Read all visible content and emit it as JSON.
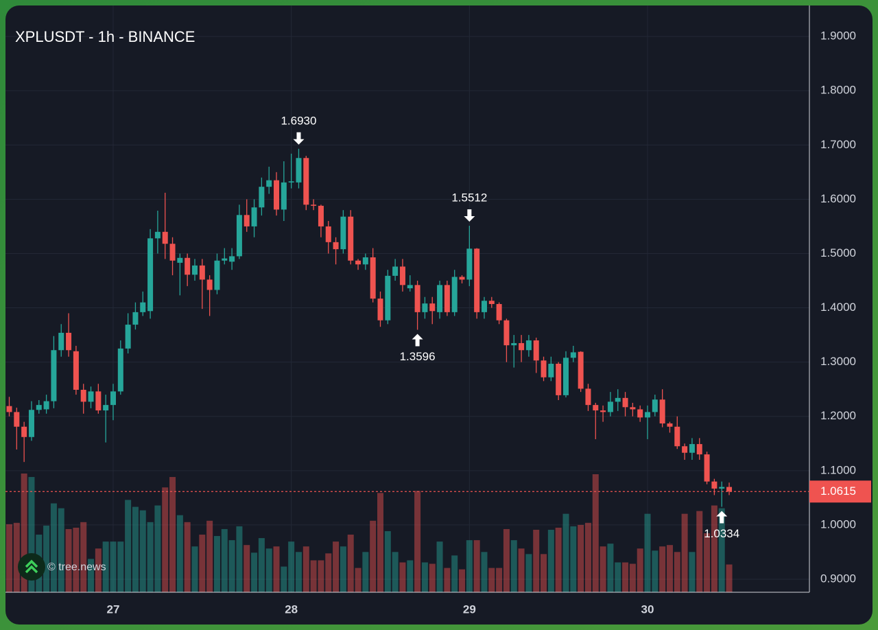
{
  "chart_data": {
    "type": "candlestick",
    "title": "XPLUSDT - 1h - BINANCE",
    "watermark": "© tree.news",
    "categories": [
      null,
      null,
      null,
      null,
      null,
      null,
      null,
      null,
      null,
      null,
      null,
      null,
      null,
      null,
      "27",
      null,
      null,
      null,
      null,
      null,
      null,
      null,
      null,
      null,
      null,
      null,
      null,
      null,
      null,
      null,
      null,
      null,
      null,
      null,
      null,
      null,
      null,
      null,
      "28",
      null,
      null,
      null,
      null,
      null,
      null,
      null,
      null,
      null,
      null,
      null,
      null,
      null,
      null,
      null,
      null,
      null,
      null,
      null,
      null,
      null,
      null,
      null,
      "29",
      null,
      null,
      null,
      null,
      null,
      null,
      null,
      null,
      null,
      null,
      null,
      null,
      null,
      null,
      null,
      null,
      null,
      null,
      null,
      null,
      null,
      null,
      null,
      "30",
      null,
      null,
      null,
      null,
      null,
      null,
      null,
      null,
      null,
      null,
      null
    ],
    "open": [
      1.219,
      1.208,
      1.181,
      1.162,
      1.212,
      1.213,
      1.228,
      1.322,
      1.354,
      1.32,
      1.249,
      1.227,
      1.246,
      1.211,
      1.221,
      1.246,
      1.325,
      1.369,
      1.392,
      1.394,
      1.528,
      1.54,
      1.518,
      1.483,
      1.492,
      1.461,
      1.478,
      1.452,
      1.433,
      1.487,
      1.485,
      1.495,
      1.571,
      1.55,
      1.585,
      1.623,
      1.635,
      1.581,
      1.631,
      1.631,
      1.676,
      1.59,
      1.588,
      1.55,
      1.521,
      1.508,
      1.568,
      1.487,
      1.48,
      1.493,
      1.417,
      1.377,
      1.459,
      1.476,
      1.436,
      1.442,
      1.392,
      1.408,
      1.392,
      1.442,
      1.392,
      1.457,
      1.452,
      1.509,
      1.392,
      1.413,
      1.407,
      1.377,
      1.331,
      1.335,
      1.322,
      1.34,
      1.303,
      1.272,
      1.297,
      1.239,
      1.308,
      1.319,
      1.251,
      1.221,
      1.211,
      1.208,
      1.227,
      1.234,
      1.217,
      1.213,
      1.198,
      1.208,
      1.231,
      1.187,
      1.181,
      1.145,
      1.133,
      1.149,
      1.13,
      1.08,
      1.067,
      1.07
    ],
    "high": [
      1.236,
      1.216,
      1.19,
      1.228,
      1.23,
      1.24,
      1.348,
      1.37,
      1.39,
      1.33,
      1.26,
      1.255,
      1.26,
      1.24,
      1.26,
      1.34,
      1.39,
      1.41,
      1.43,
      1.545,
      1.579,
      1.612,
      1.53,
      1.5,
      1.5,
      1.49,
      1.49,
      1.46,
      1.5,
      1.51,
      1.51,
      1.59,
      1.6,
      1.6,
      1.64,
      1.66,
      1.65,
      1.67,
      1.684,
      1.693,
      1.68,
      1.6,
      1.59,
      1.56,
      1.53,
      1.58,
      1.58,
      1.49,
      1.5,
      1.51,
      1.43,
      1.47,
      1.49,
      1.49,
      1.46,
      1.45,
      1.42,
      1.42,
      1.45,
      1.45,
      1.47,
      1.46,
      1.5512,
      1.51,
      1.42,
      1.42,
      1.41,
      1.38,
      1.35,
      1.35,
      1.35,
      1.345,
      1.31,
      1.31,
      1.3,
      1.32,
      1.33,
      1.32,
      1.26,
      1.225,
      1.22,
      1.245,
      1.25,
      1.245,
      1.225,
      1.22,
      1.22,
      1.24,
      1.25,
      1.19,
      1.2,
      1.15,
      1.16,
      1.16,
      1.135,
      1.085,
      1.08,
      1.078
    ],
    "low": [
      1.2,
      1.139,
      1.116,
      1.155,
      1.205,
      1.205,
      1.215,
      1.31,
      1.31,
      1.24,
      1.205,
      1.215,
      1.205,
      1.152,
      1.193,
      1.24,
      1.316,
      1.36,
      1.385,
      1.38,
      1.5,
      1.49,
      1.46,
      1.423,
      1.44,
      1.45,
      1.398,
      1.385,
      1.425,
      1.48,
      1.47,
      1.49,
      1.54,
      1.53,
      1.57,
      1.61,
      1.57,
      1.56,
      1.62,
      1.62,
      1.58,
      1.58,
      1.53,
      1.5,
      1.48,
      1.5,
      1.48,
      1.47,
      1.47,
      1.41,
      1.365,
      1.37,
      1.45,
      1.43,
      1.43,
      1.3596,
      1.38,
      1.37,
      1.38,
      1.385,
      1.385,
      1.445,
      1.44,
      1.38,
      1.38,
      1.4,
      1.37,
      1.3,
      1.29,
      1.3,
      1.31,
      1.28,
      1.265,
      1.265,
      1.23,
      1.235,
      1.3,
      1.245,
      1.21,
      1.158,
      1.19,
      1.2,
      1.21,
      1.2,
      1.2,
      1.19,
      1.158,
      1.2,
      1.18,
      1.17,
      1.14,
      1.12,
      1.12,
      1.12,
      1.075,
      1.055,
      1.0334,
      1.055
    ],
    "close": [
      1.208,
      1.181,
      1.162,
      1.212,
      1.221,
      1.228,
      1.322,
      1.354,
      1.322,
      1.249,
      1.227,
      1.246,
      1.211,
      1.221,
      1.246,
      1.325,
      1.369,
      1.392,
      1.41,
      1.528,
      1.54,
      1.518,
      1.487,
      1.492,
      1.461,
      1.478,
      1.452,
      1.433,
      1.487,
      1.491,
      1.495,
      1.571,
      1.55,
      1.585,
      1.623,
      1.635,
      1.581,
      1.631,
      1.633,
      1.676,
      1.59,
      1.588,
      1.55,
      1.521,
      1.508,
      1.568,
      1.487,
      1.48,
      1.493,
      1.417,
      1.377,
      1.459,
      1.476,
      1.442,
      1.442,
      1.392,
      1.408,
      1.394,
      1.442,
      1.392,
      1.457,
      1.452,
      1.509,
      1.392,
      1.413,
      1.407,
      1.377,
      1.331,
      1.335,
      1.322,
      1.34,
      1.303,
      1.272,
      1.297,
      1.239,
      1.308,
      1.318,
      1.251,
      1.221,
      1.211,
      1.208,
      1.227,
      1.234,
      1.217,
      1.213,
      1.198,
      1.208,
      1.231,
      1.187,
      1.181,
      1.145,
      1.133,
      1.149,
      1.13,
      1.08,
      1.067,
      1.07,
      1.0615
    ],
    "volume": [
      98,
      100,
      171,
      166,
      83,
      96,
      128,
      121,
      91,
      93,
      101,
      48,
      63,
      73,
      73,
      73,
      133,
      123,
      118,
      101,
      125,
      151,
      166,
      111,
      101,
      66,
      83,
      103,
      81,
      91,
      75,
      95,
      68,
      57,
      78,
      63,
      66,
      37,
      73,
      58,
      66,
      46,
      46,
      56,
      73,
      66,
      83,
      35,
      58,
      103,
      143,
      88,
      58,
      43,
      46,
      146,
      43,
      41,
      73,
      35,
      53,
      33,
      75,
      75,
      58,
      35,
      35,
      91,
      75,
      63,
      55,
      90,
      55,
      90,
      93,
      113,
      95,
      97,
      100,
      170,
      66,
      70,
      43,
      43,
      41,
      63,
      113,
      60,
      66,
      68,
      58,
      113,
      58,
      117,
      85,
      125,
      121,
      40
    ],
    "up_color": "#26a69a",
    "down_color": "#ef5350",
    "ylim": [
      0.876,
      1.957
    ],
    "yticks": [
      {
        "value": 0.9,
        "label": "0.9000"
      },
      {
        "value": 1.0,
        "label": "1.0000"
      },
      {
        "value": 1.1,
        "label": "1.1000"
      },
      {
        "value": 1.2,
        "label": "1.2000"
      },
      {
        "value": 1.3,
        "label": "1.3000"
      },
      {
        "value": 1.4,
        "label": "1.4000"
      },
      {
        "value": 1.5,
        "label": "1.5000"
      },
      {
        "value": 1.6,
        "label": "1.6000"
      },
      {
        "value": 1.7,
        "label": "1.7000"
      },
      {
        "value": 1.8,
        "label": "1.8000"
      },
      {
        "value": 1.9,
        "label": "1.9000"
      }
    ],
    "grid": true,
    "last_price": 1.0615,
    "annotations": [
      {
        "value": 1.693,
        "label": "1.6930"
      },
      {
        "value": 1.5512,
        "label": "1.5512"
      },
      {
        "value": 1.3596,
        "label": "1.3596"
      },
      {
        "value": 1.0334,
        "label": "1.0334"
      }
    ]
  }
}
